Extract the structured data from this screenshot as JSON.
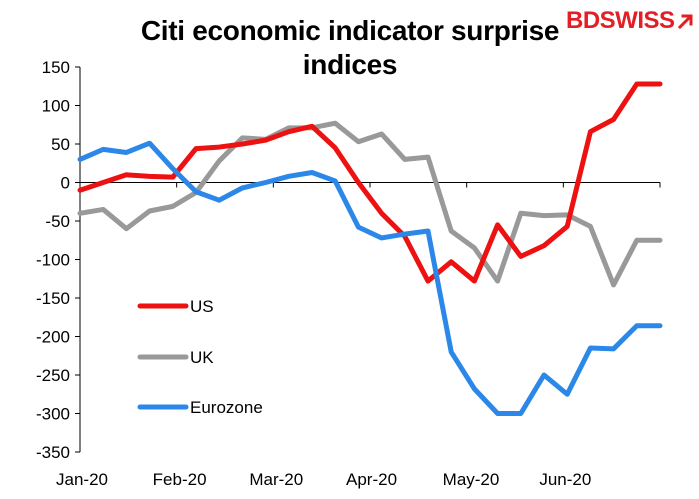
{
  "chart_data": {
    "type": "line",
    "title": "Citi economic indicator surprise indices",
    "xlabel": "",
    "ylabel": "",
    "ylim": [
      -350,
      150
    ],
    "yticks": [
      150,
      100,
      50,
      0,
      -50,
      -100,
      -150,
      -200,
      -250,
      -300,
      -350
    ],
    "xtick_labels": [
      "Jan-20",
      "Feb-20",
      "Mar-20",
      "Apr-20",
      "May-20",
      "Jun-20"
    ],
    "x_range": [
      0,
      25
    ],
    "legend_position": "left-lower",
    "series": [
      {
        "name": "US",
        "color": "#ee1111",
        "x": [
          0,
          1,
          2,
          3,
          4,
          5,
          6,
          7,
          8,
          9,
          10,
          11,
          12,
          13,
          14,
          15,
          16,
          17,
          18,
          19,
          20,
          21,
          22,
          23,
          24,
          25
        ],
        "values": [
          -10,
          0,
          10,
          8,
          7,
          44,
          46,
          50,
          55,
          66,
          73,
          45,
          0,
          -40,
          -70,
          -128,
          -103,
          -128,
          -55,
          -96,
          -82,
          -57,
          66,
          82,
          128,
          128
        ]
      },
      {
        "name": "UK",
        "color": "#999999",
        "x": [
          0,
          1,
          2,
          3,
          4,
          5,
          6,
          7,
          8,
          9,
          10,
          11,
          12,
          13,
          14,
          15,
          16,
          17,
          18,
          19,
          20,
          21,
          22,
          23,
          24,
          25
        ],
        "values": [
          -40,
          -35,
          -60,
          -37,
          -31,
          -13,
          28,
          58,
          56,
          71,
          71,
          77,
          53,
          63,
          30,
          33,
          -63,
          -85,
          -128,
          -40,
          -43,
          -42,
          -57,
          -133,
          -75,
          -75
        ]
      },
      {
        "name": "Eurozone",
        "color": "#2c88e8",
        "x": [
          0,
          1,
          2,
          3,
          4,
          5,
          6,
          7,
          8,
          9,
          10,
          11,
          12,
          13,
          14,
          15,
          16,
          17,
          18,
          19,
          20,
          21,
          22,
          23,
          24,
          25
        ],
        "values": [
          30,
          43,
          39,
          51,
          18,
          -12,
          -23,
          -7,
          0,
          8,
          13,
          2,
          -58,
          -72,
          -67,
          -63,
          -220,
          -268,
          -300,
          -300,
          -250,
          -275,
          -215,
          -216,
          -186,
          -186
        ]
      }
    ]
  },
  "brand": {
    "logo_text": "BDSWISS",
    "logo_color": "#e31e24"
  }
}
